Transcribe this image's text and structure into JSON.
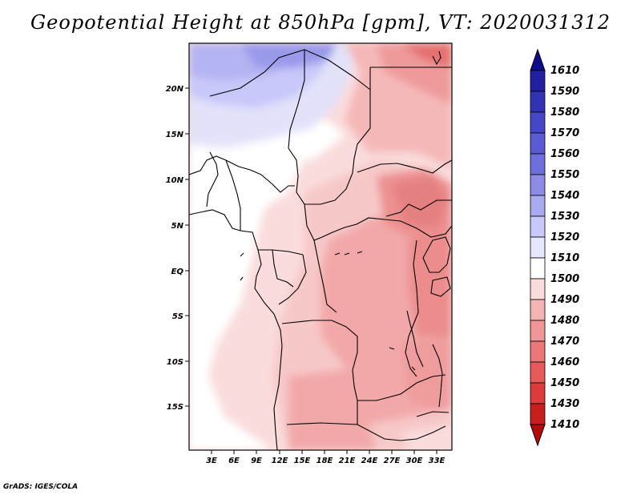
{
  "title": "Geopotential Height at 850hPa [gpm], VT: 2020031312",
  "footer": "GrADS: IGES/COLA",
  "map": {
    "lat_labels": [
      "20N",
      "15N",
      "10N",
      "5N",
      "EQ",
      "5S",
      "10S",
      "15S"
    ],
    "lon_labels": [
      "3E",
      "6E",
      "9E",
      "12E",
      "15E",
      "18E",
      "21E",
      "24E",
      "27E",
      "30E",
      "33E"
    ],
    "lat_range": [
      -20,
      24
    ],
    "lon_range": [
      0,
      35
    ],
    "region": "Central Africa"
  },
  "colorbar": {
    "levels": [
      "1610",
      "1590",
      "1580",
      "1570",
      "1560",
      "1550",
      "1540",
      "1530",
      "1520",
      "1510",
      "1500",
      "1490",
      "1480",
      "1470",
      "1460",
      "1450",
      "1430",
      "1410"
    ],
    "colors": [
      "#0c0c8c",
      "#2020a0",
      "#3232b4",
      "#4646c8",
      "#5a5ad2",
      "#6e6edc",
      "#8c8ce6",
      "#aaaaf0",
      "#c8c8fa",
      "#ffffff",
      "#fadcdc",
      "#f5b4b4",
      "#f09696",
      "#eb7878",
      "#e65a5a",
      "#dc3c3c",
      "#c81e1e",
      "#b40a0a"
    ]
  },
  "icons": {
    "colorbar_top": "triangle-up-icon",
    "colorbar_bottom": "triangle-down-icon"
  }
}
